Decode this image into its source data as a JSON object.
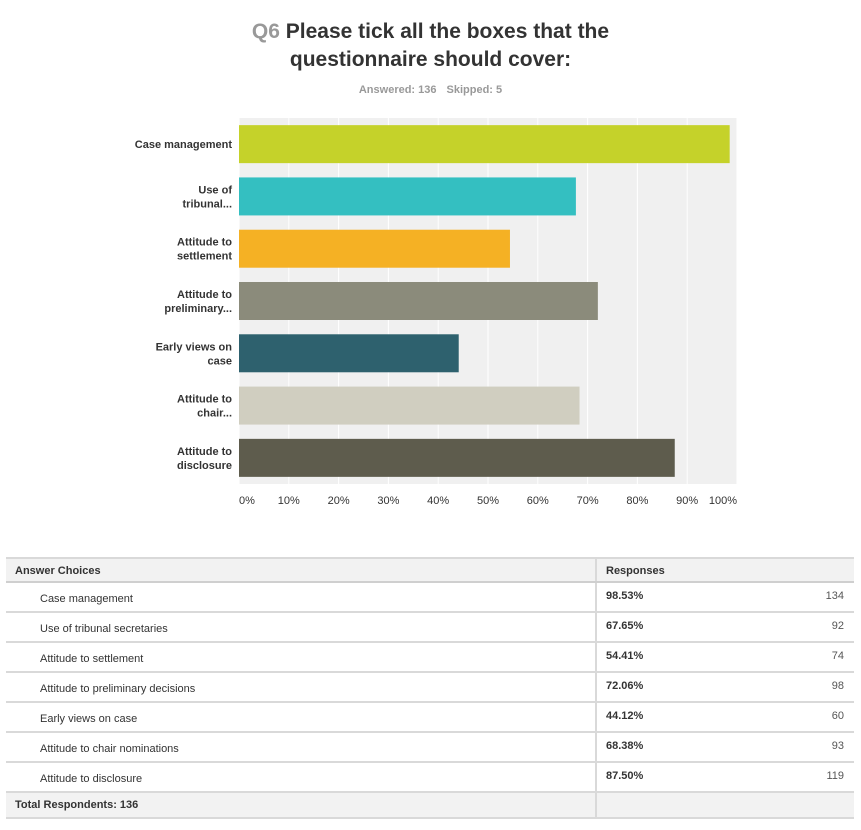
{
  "question": {
    "number": "Q6",
    "title_line1": "Please tick all the boxes that the",
    "title_line2": "questionnaire should cover:",
    "answered_label": "Answered: 136",
    "skipped_label": "Skipped: 5"
  },
  "chart_data": {
    "type": "bar",
    "orientation": "horizontal",
    "categories": [
      "Case management",
      "Use of tribunal...",
      "Attitude to settlement",
      "Attitude to preliminary...",
      "Early views on case",
      "Attitude to chair...",
      "Attitude to disclosure"
    ],
    "category_label_lines": [
      [
        "Case management"
      ],
      [
        "Use of",
        "tribunal..."
      ],
      [
        "Attitude to",
        "settlement"
      ],
      [
        "Attitude to",
        "preliminary..."
      ],
      [
        "Early views on",
        "case"
      ],
      [
        "Attitude to",
        "chair..."
      ],
      [
        "Attitude to",
        "disclosure"
      ]
    ],
    "values": [
      98.53,
      67.65,
      54.41,
      72.06,
      44.12,
      68.38,
      87.5
    ],
    "colors": [
      "#c5d22a",
      "#34bfc1",
      "#f5b124",
      "#8b8b7b",
      "#2e616e",
      "#d0cec0",
      "#5e5c4d"
    ],
    "xlim": [
      0,
      100
    ],
    "ticks": [
      "0%",
      "10%",
      "20%",
      "30%",
      "40%",
      "50%",
      "60%",
      "70%",
      "80%",
      "90%",
      "100%"
    ],
    "grid": true,
    "background": "#f0f0f0",
    "gridline_color": "#ffffff"
  },
  "table": {
    "header": {
      "choices": "Answer Choices",
      "responses": "Responses"
    },
    "rows": [
      {
        "label": "Case management",
        "percent": "98.53%",
        "count": "134"
      },
      {
        "label": "Use of tribunal secretaries",
        "percent": "67.65%",
        "count": "92"
      },
      {
        "label": "Attitude to settlement",
        "percent": "54.41%",
        "count": "74"
      },
      {
        "label": "Attitude to preliminary decisions",
        "percent": "72.06%",
        "count": "98"
      },
      {
        "label": "Early views on case",
        "percent": "44.12%",
        "count": "60"
      },
      {
        "label": "Attitude to chair nominations",
        "percent": "68.38%",
        "count": "93"
      },
      {
        "label": "Attitude to disclosure",
        "percent": "87.50%",
        "count": "119"
      }
    ],
    "footer": "Total Respondents: 136"
  }
}
